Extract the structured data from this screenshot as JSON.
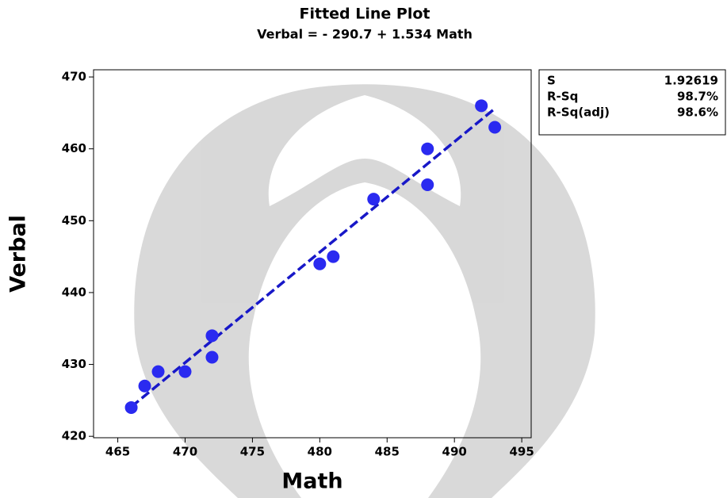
{
  "chart_data": {
    "type": "scatter",
    "title": "Fitted Line Plot",
    "subtitle": "Verbal =  - 290.7 + 1.534 Math",
    "x_label": "Math",
    "y_label": "Verbal",
    "xlim": [
      463.2,
      495.7
    ],
    "ylim": [
      419.8,
      471.0
    ],
    "xticks": [
      465,
      470,
      475,
      480,
      485,
      490,
      495
    ],
    "yticks": [
      420,
      430,
      440,
      450,
      460,
      470
    ],
    "grid": false,
    "series": [
      {
        "color": "#2a2af0",
        "style": "markers",
        "x": [
          466,
          467,
          468,
          470,
          472,
          472,
          480,
          481,
          484,
          488,
          488,
          492,
          493
        ],
        "values": [
          424,
          427,
          429,
          429,
          434,
          431,
          444,
          445,
          453,
          460,
          455,
          466,
          463
        ]
      },
      {
        "color": "#1818c8",
        "style": "dashed-line",
        "x": [
          466,
          493
        ],
        "values": [
          424.1,
          465.6
        ]
      }
    ],
    "stats": [
      [
        "S",
        "1.92619"
      ],
      [
        "R-Sq",
        "98.7%"
      ],
      [
        "R-Sq(adj)",
        "98.6%"
      ]
    ]
  }
}
